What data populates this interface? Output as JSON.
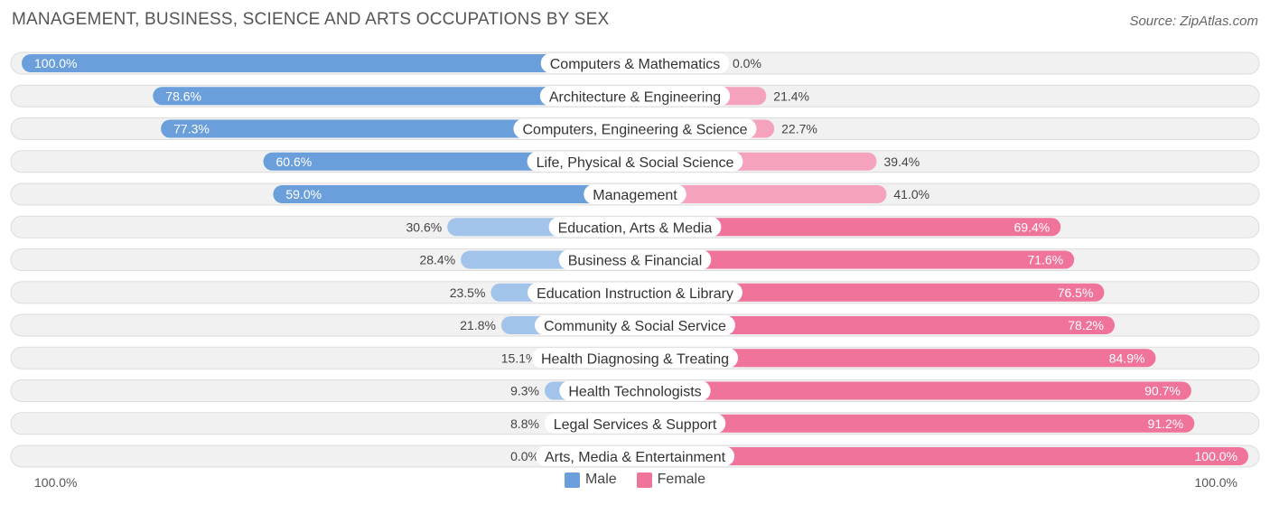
{
  "title": "MANAGEMENT, BUSINESS, SCIENCE AND ARTS OCCUPATIONS BY SEX",
  "source": "Source: ZipAtlas.com",
  "axis": {
    "left_label": "100.0%",
    "right_label": "100.0%"
  },
  "legend": {
    "male": "Male",
    "female": "Female"
  },
  "colors": {
    "male_strong": "#6a9fdc",
    "male_light": "#a3c4ea",
    "female_strong": "#f07399",
    "female_light": "#f5a3bc",
    "row_bg": "#eeeeee"
  },
  "chart_data": {
    "type": "bar",
    "orientation": "diverging-horizontal",
    "categories": [
      "Computers & Mathematics",
      "Architecture & Engineering",
      "Computers, Engineering & Science",
      "Life, Physical & Social Science",
      "Management",
      "Education, Arts & Media",
      "Business & Financial",
      "Education Instruction & Library",
      "Community & Social Service",
      "Health Diagnosing & Treating",
      "Health Technologists",
      "Legal Services & Support",
      "Arts, Media & Entertainment"
    ],
    "series": [
      {
        "name": "Male",
        "values": [
          100.0,
          78.6,
          77.3,
          60.6,
          59.0,
          30.6,
          28.4,
          23.5,
          21.8,
          15.1,
          9.3,
          8.8,
          0.0
        ],
        "labels": [
          "100.0%",
          "78.6%",
          "77.3%",
          "60.6%",
          "59.0%",
          "30.6%",
          "28.4%",
          "23.5%",
          "21.8%",
          "15.1%",
          "9.3%",
          "8.8%",
          "0.0%"
        ]
      },
      {
        "name": "Female",
        "values": [
          0.0,
          21.4,
          22.7,
          39.4,
          41.0,
          69.4,
          71.6,
          76.5,
          78.2,
          84.9,
          90.7,
          91.2,
          100.0
        ],
        "labels": [
          "0.0%",
          "21.4%",
          "22.7%",
          "39.4%",
          "41.0%",
          "69.4%",
          "71.6%",
          "76.5%",
          "78.2%",
          "84.9%",
          "90.7%",
          "91.2%",
          "100.0%"
        ]
      }
    ],
    "xlim": [
      -100,
      100
    ],
    "unit": "%"
  }
}
